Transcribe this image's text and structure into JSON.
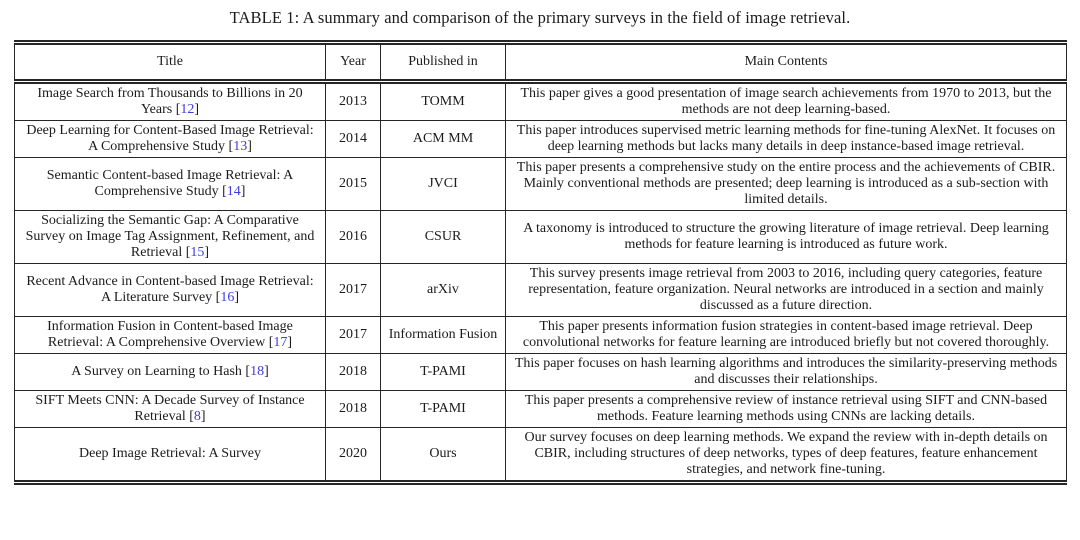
{
  "colors": {
    "background": "#ffffff",
    "text": "#1b1b1b",
    "border": "#262626",
    "citation": "#3d3bde"
  },
  "caption": "TABLE 1: A summary and comparison of the primary surveys in the field of image retrieval.",
  "table": {
    "headers": [
      "Title",
      "Year",
      "Published in",
      "Main Contents"
    ],
    "rows": [
      {
        "title": "Image Search from Thousands to Billions in 20 Years",
        "cite": "12",
        "year": "2013",
        "venue": "TOMM",
        "contents": "This paper gives a good presentation of image search achievements from 1970 to 2013, but the methods are not deep learning-based."
      },
      {
        "title": "Deep Learning for Content-Based Image Retrieval: A Comprehensive Study",
        "cite": "13",
        "year": "2014",
        "venue": "ACM MM",
        "contents": "This paper introduces supervised metric learning methods for fine-tuning AlexNet. It focuses on deep learning methods but lacks many details in deep instance-based image retrieval."
      },
      {
        "title": "Semantic Content-based Image Retrieval: A Comprehensive Study",
        "cite": "14",
        "year": "2015",
        "venue": "JVCI",
        "contents": "This paper presents a comprehensive study on the entire process and the achievements of CBIR. Mainly conventional methods are presented; deep learning is introduced as a sub-section with limited details."
      },
      {
        "title": "Socializing the Semantic Gap: A Comparative Survey on Image Tag Assignment, Refinement, and Retrieval",
        "cite": "15",
        "year": "2016",
        "venue": "CSUR",
        "contents": "A taxonomy is introduced to structure the growing literature of image retrieval. Deep learning methods for feature learning is introduced as future work."
      },
      {
        "title": "Recent Advance in Content-based Image Retrieval: A Literature Survey",
        "cite": "16",
        "year": "2017",
        "venue": "arXiv",
        "contents": "This survey presents image retrieval from 2003 to 2016, including query categories, feature representation, feature organization. Neural networks are introduced in a section and mainly discussed as a future direction."
      },
      {
        "title": "Information Fusion in Content-based Image Retrieval: A Comprehensive Overview",
        "cite": "17",
        "year": "2017",
        "venue": "Information Fusion",
        "contents": "This paper presents information fusion strategies in content-based image retrieval. Deep convolutional networks for feature learning are introduced briefly but not covered thoroughly."
      },
      {
        "title": "A Survey on Learning to Hash",
        "cite": "18",
        "year": "2018",
        "venue": "T-PAMI",
        "contents": "This paper focuses on hash learning algorithms and introduces the similarity-preserving methods and discusses their relationships."
      },
      {
        "title": "SIFT Meets CNN: A Decade Survey of Instance Retrieval",
        "cite": "8",
        "year": "2018",
        "venue": "T-PAMI",
        "contents": "This paper presents a comprehensive review of instance retrieval using SIFT and CNN-based methods. Feature learning methods using CNNs are lacking details."
      },
      {
        "title": "Deep Image Retrieval: A Survey",
        "cite": null,
        "year": "2020",
        "venue": "Ours",
        "contents": "Our survey focuses on deep learning methods. We expand the review with in-depth details on CBIR, including structures of deep networks, types of deep features, feature enhancement strategies, and network fine-tuning."
      }
    ]
  }
}
